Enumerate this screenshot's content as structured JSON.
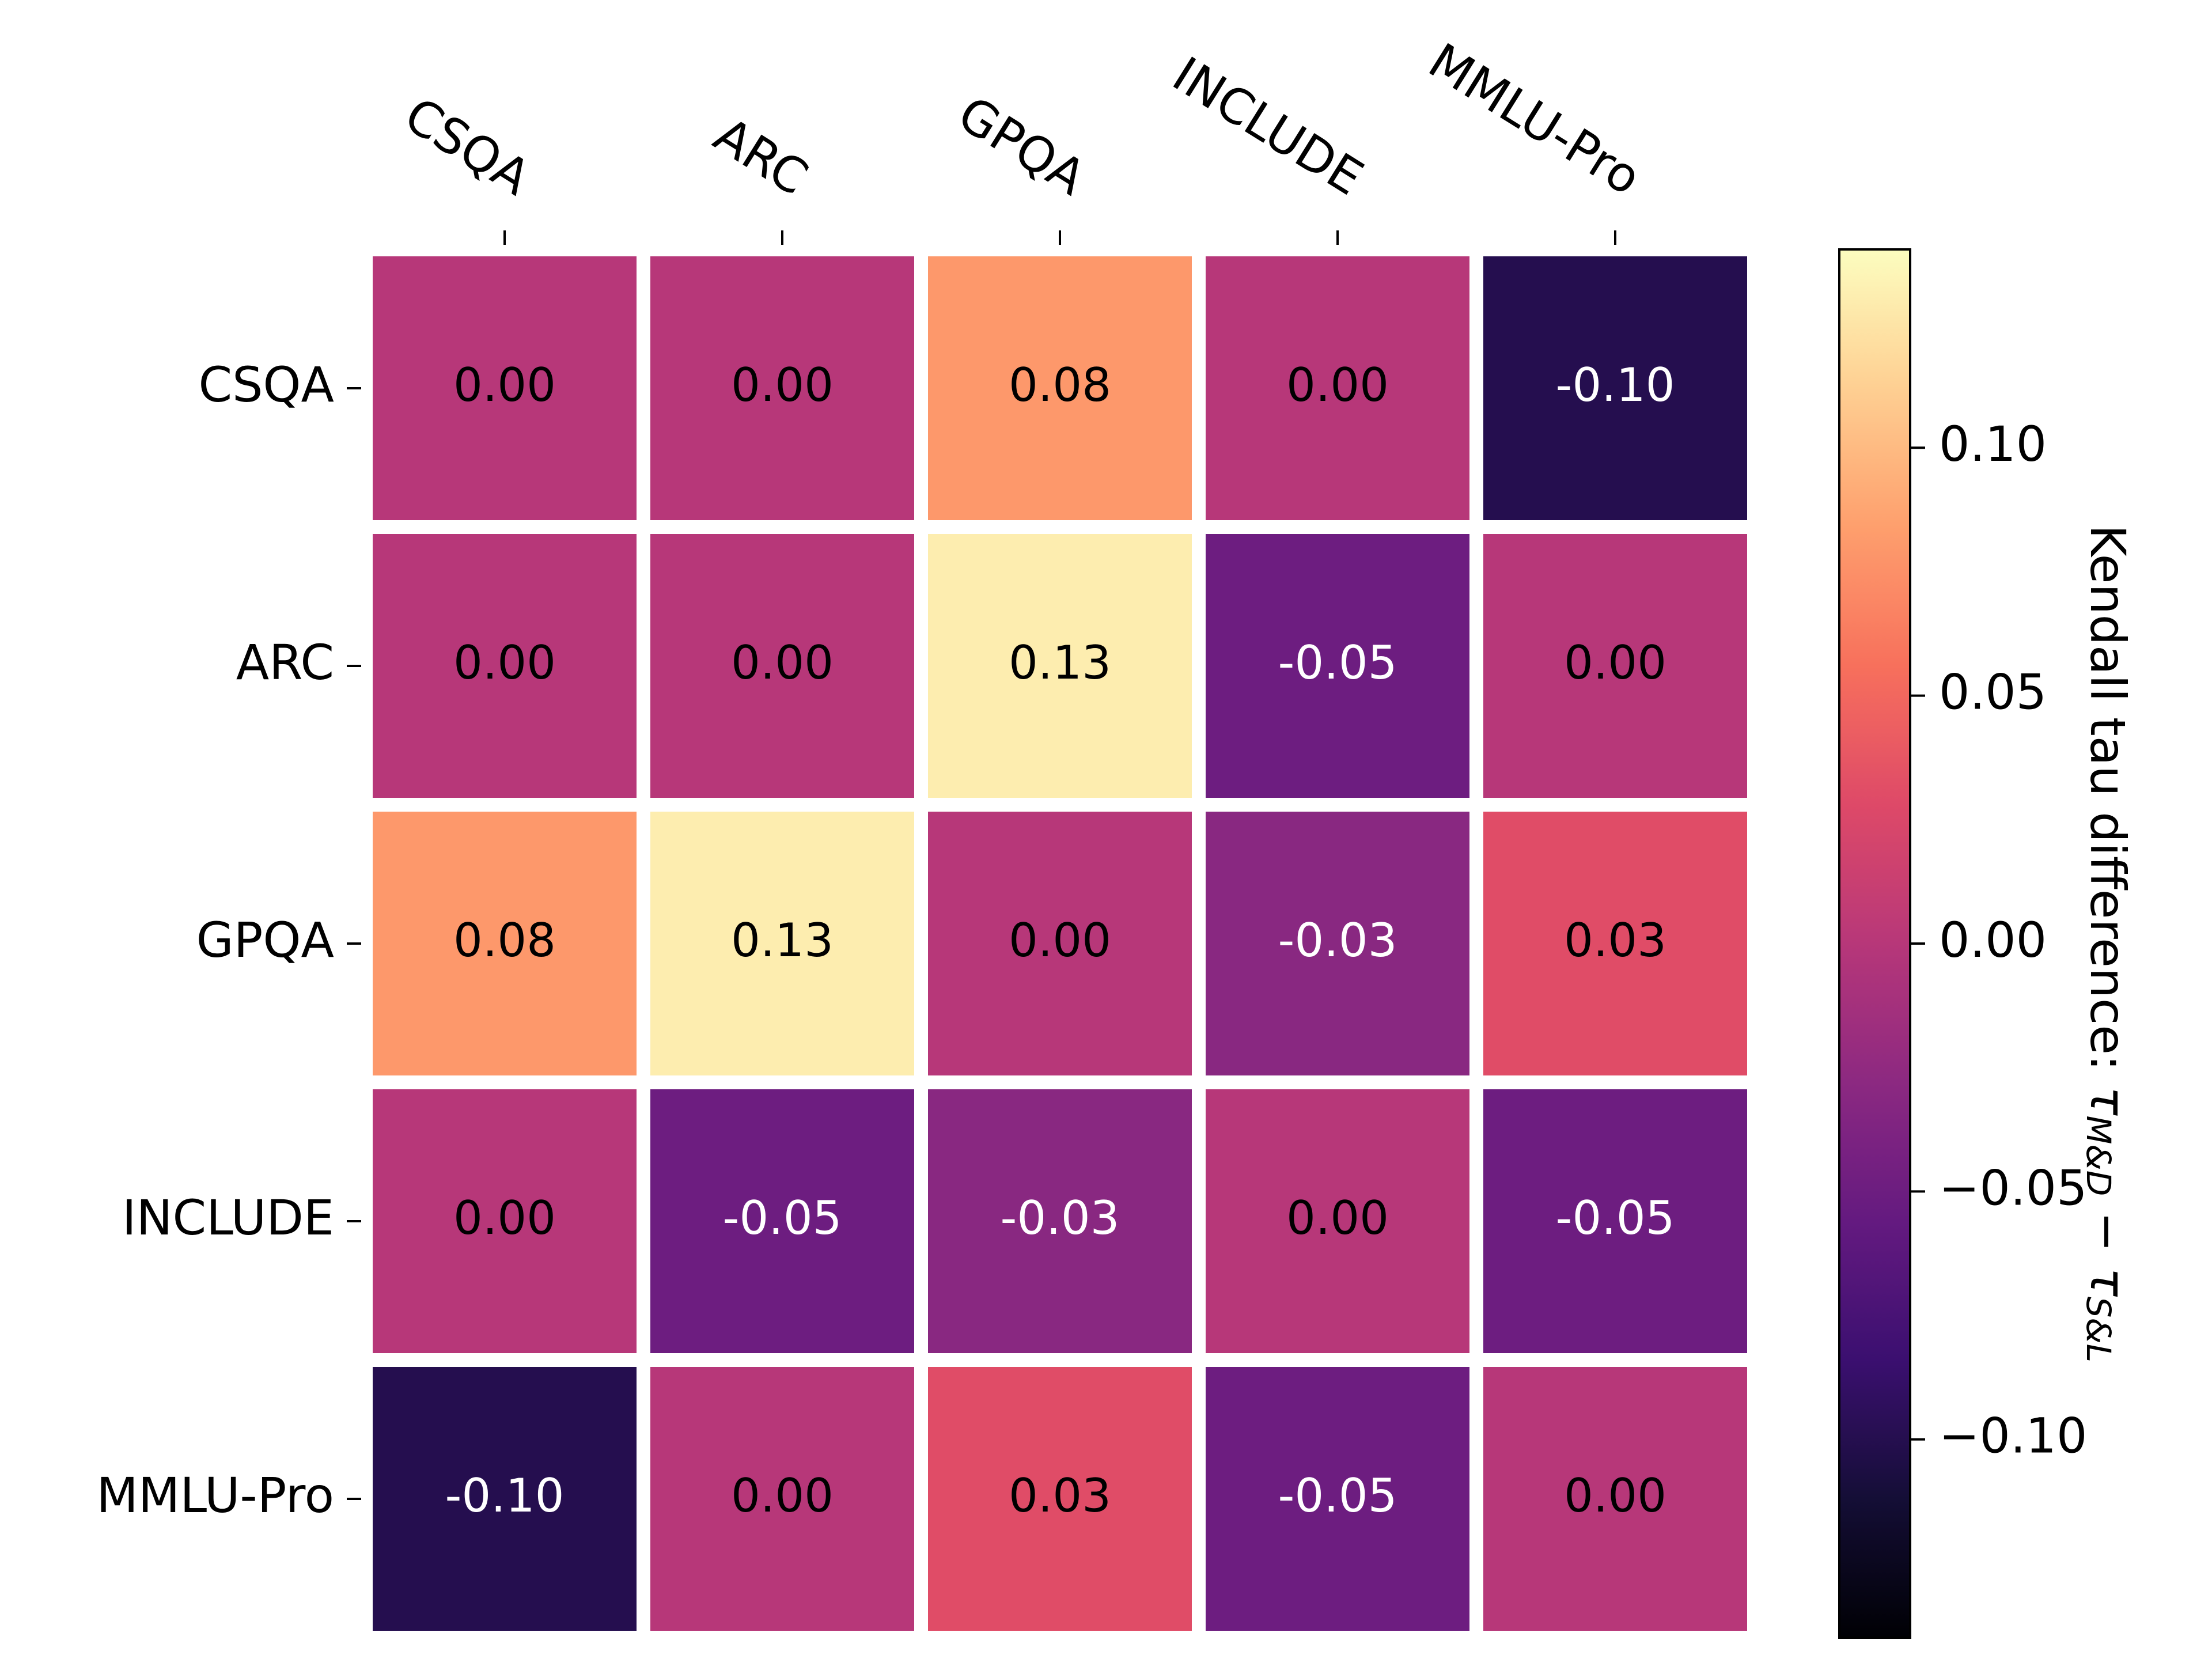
{
  "chart_data": {
    "type": "heatmap",
    "title": "",
    "x_labels": [
      "CSQA",
      "ARC",
      "GPQA",
      "INCLUDE",
      "MMLU-Pro"
    ],
    "y_labels": [
      "CSQA",
      "ARC",
      "GPQA",
      "INCLUDE",
      "MMLU-Pro"
    ],
    "x_axis_position": "top",
    "values": [
      [
        0.0,
        0.0,
        0.08,
        0.0,
        -0.1
      ],
      [
        0.0,
        0.0,
        0.13,
        -0.05,
        0.0
      ],
      [
        0.08,
        0.13,
        0.0,
        -0.03,
        0.03
      ],
      [
        0.0,
        -0.05,
        -0.03,
        0.0,
        -0.05
      ],
      [
        -0.1,
        0.0,
        0.03,
        -0.05,
        0.0
      ]
    ],
    "cell_text": [
      [
        "0.00",
        "0.00",
        "0.08",
        "0.00",
        "-0.10"
      ],
      [
        "0.00",
        "0.00",
        "0.13",
        "-0.05",
        "0.00"
      ],
      [
        "0.08",
        "0.13",
        "0.00",
        "-0.03",
        "0.03"
      ],
      [
        "0.00",
        "-0.05",
        "-0.03",
        "0.00",
        "-0.05"
      ],
      [
        "-0.10",
        "0.00",
        "0.03",
        "-0.05",
        "0.00"
      ]
    ],
    "colormap": "magma",
    "color_range": [
      -0.14,
      0.14
    ],
    "colorbar": {
      "label": "Kendall tau difference: ",
      "label_math": "τM&D − τS&L",
      "label_math_parts": [
        "τ",
        "M&D",
        " − τ",
        "S&L"
      ],
      "ticks": [
        0.1,
        0.05,
        0.0,
        -0.05,
        -0.1
      ],
      "tick_labels": [
        "0.10",
        "0.05",
        "0.00",
        "−0.05",
        "−0.10"
      ]
    }
  }
}
